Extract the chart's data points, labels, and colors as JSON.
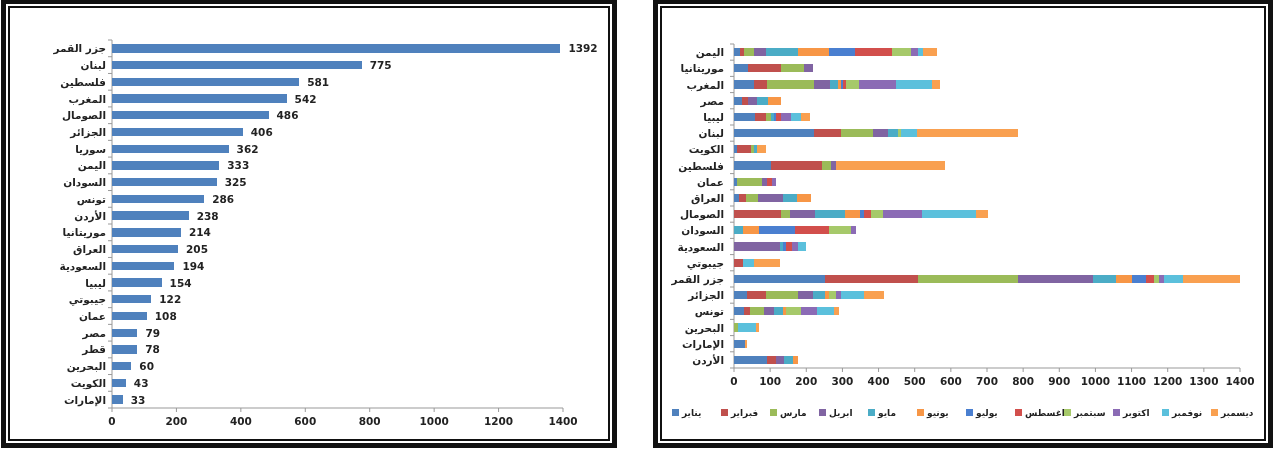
{
  "chart_data": [
    {
      "type": "bar",
      "orientation": "horizontal",
      "categories": [
        "جزر القمر",
        "لبنان",
        "فلسطين",
        "المغرب",
        "الصومال",
        "الجزائر",
        "سوريا",
        "اليمن",
        "السودان",
        "تونس",
        "الأردن",
        "موريتانيا",
        "العراق",
        "السعودية",
        "ليبيا",
        "جيبوتي",
        "عمان",
        "مصر",
        "قطر",
        "البحرين",
        "الكويت",
        "الإمارات"
      ],
      "values": [
        1392,
        775,
        581,
        542,
        486,
        406,
        362,
        333,
        325,
        286,
        238,
        214,
        205,
        194,
        154,
        122,
        108,
        79,
        78,
        60,
        43,
        33
      ],
      "color": "#4f81bd",
      "xlim": [
        0,
        1400
      ],
      "xticks": [
        0,
        200,
        400,
        600,
        800,
        1000,
        1200,
        1400
      ],
      "data_labels": true,
      "grid": false,
      "legend": false
    },
    {
      "type": "bar",
      "orientation": "horizontal",
      "stacked": true,
      "categories": [
        "اليمن",
        "موريتانيا",
        "المغرب",
        "مصر",
        "ليبيا",
        "لبنان",
        "الكويت",
        "فلسطين",
        "عمان",
        "العراق",
        "الصومال",
        "السودان",
        "السعودية",
        "جيبوتي",
        "جزر القمر",
        "الجزائر",
        "تونس",
        "البحرين",
        "الإمارات",
        "الأردن"
      ],
      "series": [
        {
          "name": "يناير",
          "color": "#4f81bd",
          "values": [
            16,
            38,
            56,
            22,
            59,
            221,
            9,
            102,
            9,
            14,
            0,
            0,
            0,
            0,
            253,
            37,
            27,
            0,
            30,
            90
          ]
        },
        {
          "name": "فبراير",
          "color": "#c0504d",
          "values": [
            11,
            92,
            35,
            16,
            29,
            75,
            39,
            141,
            0,
            18,
            131,
            0,
            0,
            24,
            256,
            52,
            16,
            0,
            0,
            25
          ]
        },
        {
          "name": "مارس",
          "color": "#9bbb59",
          "values": [
            27,
            63,
            130,
            0,
            14,
            89,
            8,
            26,
            69,
            35,
            23,
            0,
            0,
            0,
            278,
            87,
            40,
            11,
            0,
            0
          ]
        },
        {
          "name": "ابريل",
          "color": "#8064a2",
          "values": [
            35,
            25,
            45,
            26,
            0,
            41,
            0,
            14,
            14,
            69,
            69,
            0,
            126,
            0,
            206,
            42,
            29,
            0,
            0,
            24
          ]
        },
        {
          "name": "مايو",
          "color": "#4bacc6",
          "values": [
            88,
            0,
            21,
            30,
            8,
            27,
            9,
            0,
            0,
            37,
            83,
            24,
            10,
            0,
            63,
            35,
            24,
            0,
            0,
            24
          ]
        },
        {
          "name": "يونيو",
          "color": "#f79646",
          "values": [
            87,
            0,
            9,
            36,
            0,
            0,
            0,
            0,
            0,
            39,
            43,
            45,
            0,
            0,
            45,
            9,
            7,
            0,
            0,
            14
          ]
        },
        {
          "name": "يوليو",
          "color": "#4a7fd0",
          "values": [
            72,
            0,
            6,
            0,
            6,
            0,
            0,
            0,
            0,
            0,
            10,
            99,
            9,
            0,
            40,
            0,
            0,
            0,
            0,
            0
          ]
        },
        {
          "name": "اغسطس",
          "color": "#d24f4c",
          "values": [
            100,
            0,
            7,
            0,
            15,
            0,
            0,
            0,
            12,
            0,
            19,
            94,
            16,
            0,
            20,
            0,
            0,
            0,
            0,
            0
          ]
        },
        {
          "name": "سبتمبر",
          "color": "#a6c96a",
          "values": [
            53,
            0,
            36,
            0,
            0,
            8,
            0,
            0,
            0,
            0,
            35,
            62,
            0,
            0,
            15,
            21,
            43,
            0,
            0,
            0
          ]
        },
        {
          "name": "اكتوبر",
          "color": "#8b6bb5",
          "values": [
            20,
            0,
            102,
            0,
            26,
            0,
            0,
            0,
            13,
            0,
            108,
            14,
            16,
            0,
            15,
            13,
            44,
            0,
            0,
            0
          ]
        },
        {
          "name": "نوفمبر",
          "color": "#5bc0dc",
          "values": [
            13,
            0,
            102,
            0,
            27,
            44,
            0,
            0,
            0,
            0,
            149,
            0,
            21,
            32,
            52,
            64,
            48,
            51,
            0,
            0
          ]
        },
        {
          "name": "ديسمبر",
          "color": "#f9a050",
          "values": [
            40,
            0,
            21,
            0,
            27,
            280,
            23,
            302,
            0,
            0,
            33,
            0,
            0,
            72,
            156,
            55,
            13,
            6,
            7,
            0
          ]
        }
      ],
      "xlim": [
        0,
        1400
      ],
      "xticks": [
        0,
        100,
        200,
        300,
        400,
        500,
        600,
        700,
        800,
        900,
        1000,
        1100,
        1200,
        1300,
        1400
      ],
      "grid": false,
      "legend": "bottom"
    }
  ]
}
